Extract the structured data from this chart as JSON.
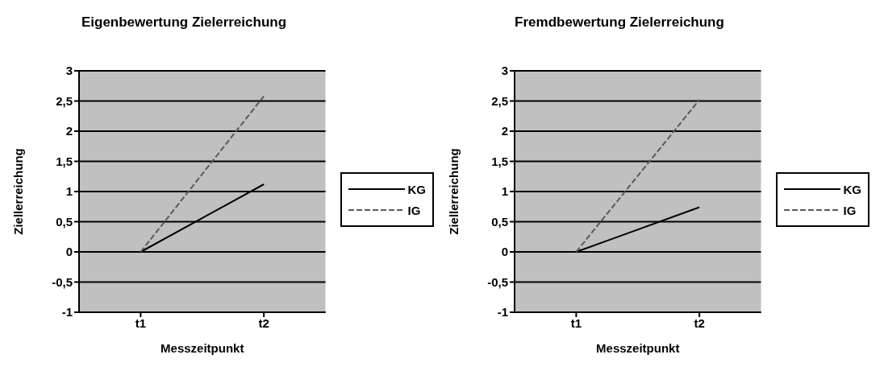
{
  "chart_data": [
    {
      "type": "line",
      "title": "Eigenbewertung Zielerreichung",
      "xlabel": "Messzeitpunkt",
      "ylabel": "Ziellerreichung",
      "categories": [
        "t1",
        "t2"
      ],
      "series": [
        {
          "name": "KG",
          "color": "#000000",
          "values": [
            0,
            1.12
          ],
          "line_style": "solid"
        },
        {
          "name": "IG",
          "color": "#595959",
          "values": [
            0,
            2.58
          ],
          "line_style": "dashed"
        }
      ],
      "ylim": [
        -1,
        3
      ],
      "yticks": [
        -1,
        {
          "value": -0.5,
          "label": "-0,5"
        },
        0,
        {
          "value": 0.5,
          "label": "0,5"
        },
        1,
        {
          "value": 1.5,
          "label": "1,5"
        },
        2,
        {
          "value": 2.5,
          "label": "2,5"
        },
        3
      ],
      "grid": "y",
      "legend": "right",
      "marker": "none"
    },
    {
      "type": "line",
      "title": "Fremdbewertung Zielerreichung",
      "xlabel": "Messzeitpunkt",
      "ylabel": "Ziellerreichung",
      "categories": [
        "t1",
        "t2"
      ],
      "series": [
        {
          "name": "KG",
          "color": "#000000",
          "values": [
            0,
            0.74
          ],
          "line_style": "solid"
        },
        {
          "name": "IG",
          "color": "#595959",
          "values": [
            0,
            2.52
          ],
          "line_style": "dashed"
        }
      ],
      "ylim": [
        -1,
        3
      ],
      "yticks": [
        -1,
        {
          "value": -0.5,
          "label": "-0,5"
        },
        0,
        {
          "value": 0.5,
          "label": "0,5"
        },
        1,
        {
          "value": 1.5,
          "label": "1,5"
        },
        2,
        {
          "value": 2.5,
          "label": "2,5"
        },
        3
      ],
      "grid": "y",
      "legend": "right",
      "marker": "none"
    }
  ]
}
